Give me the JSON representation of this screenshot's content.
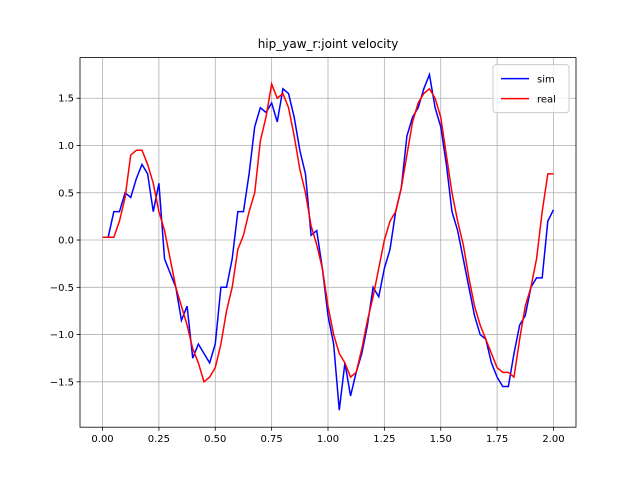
{
  "chart_data": {
    "type": "line",
    "title": "hip_yaw_r:joint velocity",
    "x": [
      0,
      0.025,
      0.05,
      0.075,
      0.1,
      0.125,
      0.15,
      0.175,
      0.2,
      0.225,
      0.25,
      0.275,
      0.3,
      0.325,
      0.35,
      0.375,
      0.4,
      0.425,
      0.45,
      0.475,
      0.5,
      0.525,
      0.55,
      0.575,
      0.6,
      0.625,
      0.65,
      0.675,
      0.7,
      0.725,
      0.75,
      0.775,
      0.8,
      0.825,
      0.85,
      0.875,
      0.9,
      0.925,
      0.95,
      0.975,
      1.0,
      1.025,
      1.05,
      1.075,
      1.1,
      1.125,
      1.15,
      1.175,
      1.2,
      1.225,
      1.25,
      1.275,
      1.3,
      1.325,
      1.35,
      1.375,
      1.4,
      1.425,
      1.45,
      1.475,
      1.5,
      1.525,
      1.55,
      1.575,
      1.6,
      1.625,
      1.65,
      1.675,
      1.7,
      1.725,
      1.75,
      1.775,
      1.8,
      1.825,
      1.85,
      1.875,
      1.9,
      1.925,
      1.95,
      1.975,
      2.0
    ],
    "series": [
      {
        "name": "sim",
        "color": "#0000ff",
        "values": [
          0.03,
          0.03,
          0.3,
          0.3,
          0.5,
          0.45,
          0.65,
          0.8,
          0.7,
          0.3,
          0.6,
          -0.2,
          -0.35,
          -0.5,
          -0.85,
          -0.7,
          -1.25,
          -1.1,
          -1.2,
          -1.3,
          -1.1,
          -0.5,
          -0.5,
          -0.2,
          0.3,
          0.3,
          0.7,
          1.2,
          1.4,
          1.35,
          1.45,
          1.25,
          1.6,
          1.55,
          1.3,
          0.95,
          0.7,
          0.05,
          0.1,
          -0.3,
          -0.8,
          -1.1,
          -1.8,
          -1.3,
          -1.65,
          -1.4,
          -1.2,
          -0.9,
          -0.5,
          -0.6,
          -0.3,
          -0.1,
          0.3,
          0.55,
          1.1,
          1.3,
          1.4,
          1.6,
          1.75,
          1.4,
          1.2,
          0.8,
          0.3,
          0.1,
          -0.2,
          -0.5,
          -0.8,
          -1.0,
          -1.05,
          -1.3,
          -1.45,
          -1.55,
          -1.55,
          -1.2,
          -0.9,
          -0.8,
          -0.5,
          -0.4,
          -0.4,
          0.2,
          0.32
        ]
      },
      {
        "name": "real",
        "color": "#ff0000",
        "values": [
          0.03,
          0.03,
          0.03,
          0.2,
          0.45,
          0.9,
          0.95,
          0.95,
          0.8,
          0.6,
          0.3,
          0.1,
          -0.2,
          -0.5,
          -0.7,
          -0.9,
          -1.15,
          -1.3,
          -1.5,
          -1.45,
          -1.35,
          -1.1,
          -0.75,
          -0.5,
          -0.1,
          0.05,
          0.3,
          0.5,
          1.05,
          1.3,
          1.65,
          1.5,
          1.55,
          1.4,
          1.1,
          0.75,
          0.5,
          0.15,
          -0.05,
          -0.3,
          -0.7,
          -1.0,
          -1.2,
          -1.3,
          -1.45,
          -1.4,
          -1.15,
          -0.85,
          -0.6,
          -0.3,
          0.0,
          0.2,
          0.3,
          0.55,
          0.9,
          1.25,
          1.45,
          1.55,
          1.6,
          1.5,
          1.3,
          0.9,
          0.5,
          0.2,
          -0.05,
          -0.4,
          -0.7,
          -0.9,
          -1.05,
          -1.2,
          -1.35,
          -1.4,
          -1.4,
          -1.45,
          -1.05,
          -0.7,
          -0.5,
          -0.2,
          0.3,
          0.7,
          0.7
        ]
      }
    ],
    "xlim": [
      -0.1,
      2.1
    ],
    "ylim": [
      -1.98,
      1.93
    ],
    "xticks": [
      {
        "value": 0,
        "label": "0.00"
      },
      {
        "value": 0.25,
        "label": "0.25"
      },
      {
        "value": 0.5,
        "label": "0.50"
      },
      {
        "value": 0.75,
        "label": "0.75"
      },
      {
        "value": 1,
        "label": "1.00"
      },
      {
        "value": 1.25,
        "label": "1.25"
      },
      {
        "value": 1.5,
        "label": "1.50"
      },
      {
        "value": 1.75,
        "label": "1.75"
      },
      {
        "value": 2,
        "label": "2.00"
      }
    ],
    "yticks": [
      {
        "value": -1.5,
        "label": "−1.5"
      },
      {
        "value": -1,
        "label": "−1.0"
      },
      {
        "value": -0.5,
        "label": "−0.5"
      },
      {
        "value": 0,
        "label": "0.0"
      },
      {
        "value": 0.5,
        "label": "0.5"
      },
      {
        "value": 1,
        "label": "1.0"
      },
      {
        "value": 1.5,
        "label": "1.5"
      }
    ],
    "grid": true,
    "legend": "upper right"
  }
}
